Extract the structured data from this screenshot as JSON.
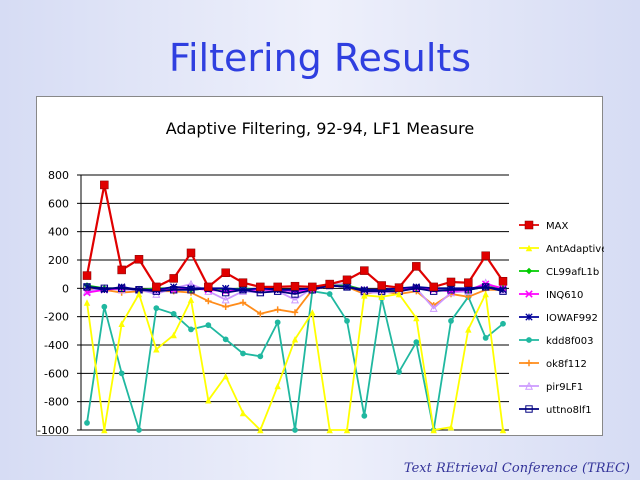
{
  "slide": {
    "title": "Filtering Results",
    "footer": "Text REtrieval Conference (TREC)"
  },
  "chart_data": {
    "type": "line",
    "title": "Adaptive Filtering, 92-94, LF1 Measure",
    "xlabel": "",
    "ylabel": "",
    "ylim": [
      -1000,
      800
    ],
    "yticks": [
      800,
      600,
      400,
      200,
      0,
      -200,
      -400,
      -600,
      -800,
      -1000
    ],
    "grid": "horizontal",
    "legend": "right",
    "series": [
      {
        "name": "MAX",
        "color": "#e00000",
        "marker": "square-filled",
        "values": [
          90,
          730,
          130,
          205,
          10,
          70,
          250,
          10,
          110,
          40,
          10,
          10,
          15,
          10,
          30,
          60,
          125,
          20,
          5,
          155,
          10,
          45,
          40,
          230,
          50
        ]
      },
      {
        "name": "AntAdaptive1",
        "color": "#ffff00",
        "marker": "triangle-filled",
        "values": [
          -100,
          -1000,
          -250,
          -40,
          -430,
          -330,
          -80,
          -790,
          -620,
          -880,
          -1000,
          -690,
          -360,
          -170,
          -1000,
          -1000,
          -50,
          -60,
          -40,
          -210,
          -1000,
          -980,
          -290,
          -40,
          -1000
        ]
      },
      {
        "name": "CL99afL1b",
        "color": "#00cc00",
        "marker": "diamond-filled",
        "values": [
          20,
          0,
          0,
          -10,
          0,
          0,
          -10,
          0,
          -10,
          0,
          -10,
          -10,
          -20,
          -10,
          20,
          20,
          -10,
          -10,
          -10,
          0,
          0,
          0,
          -10,
          10,
          0
        ]
      },
      {
        "name": "INQ610",
        "color": "#ff00ff",
        "marker": "x",
        "values": [
          -30,
          -10,
          0,
          -10,
          -10,
          -10,
          0,
          -10,
          -20,
          -10,
          -10,
          -10,
          -20,
          -10,
          20,
          10,
          -10,
          -10,
          0,
          0,
          -10,
          -20,
          -10,
          30,
          0
        ]
      },
      {
        "name": "IOWAF992",
        "color": "#000099",
        "marker": "star",
        "values": [
          10,
          -10,
          10,
          -10,
          -10,
          10,
          0,
          0,
          0,
          -10,
          0,
          -10,
          -10,
          0,
          20,
          10,
          -10,
          -10,
          0,
          10,
          0,
          0,
          0,
          10,
          -10
        ]
      },
      {
        "name": "kdd8f003",
        "color": "#20b8a0",
        "marker": "circle-filled",
        "values": [
          -950,
          -130,
          -600,
          -1000,
          -140,
          -180,
          -290,
          -260,
          -360,
          -460,
          -480,
          -240,
          -1000,
          -20,
          -40,
          -230,
          -900,
          -70,
          -590,
          -380,
          -1000,
          -230,
          -60,
          -350,
          -250
        ]
      },
      {
        "name": "ok8f112",
        "color": "#ff8c1a",
        "marker": "plus",
        "values": [
          0,
          -10,
          -30,
          -20,
          -20,
          -20,
          -30,
          -90,
          -130,
          -100,
          -180,
          -150,
          -170,
          -10,
          20,
          10,
          -40,
          -20,
          -40,
          -20,
          -120,
          -40,
          -60,
          -10,
          -10
        ]
      },
      {
        "name": "pir9LF1",
        "color": "#cc99ff",
        "marker": "triangle-open",
        "values": [
          -20,
          0,
          -10,
          -10,
          -40,
          0,
          30,
          -20,
          -80,
          -20,
          -30,
          -20,
          -80,
          0,
          30,
          30,
          -30,
          -30,
          -20,
          0,
          -140,
          -30,
          -20,
          40,
          -10
        ]
      },
      {
        "name": "uttno8lf1",
        "color": "#000080",
        "marker": "square-open",
        "values": [
          10,
          0,
          0,
          -10,
          -20,
          -10,
          -10,
          0,
          -30,
          -10,
          -30,
          -20,
          -40,
          -10,
          20,
          10,
          -20,
          -20,
          -20,
          0,
          -20,
          -10,
          -10,
          10,
          -20
        ]
      }
    ]
  }
}
